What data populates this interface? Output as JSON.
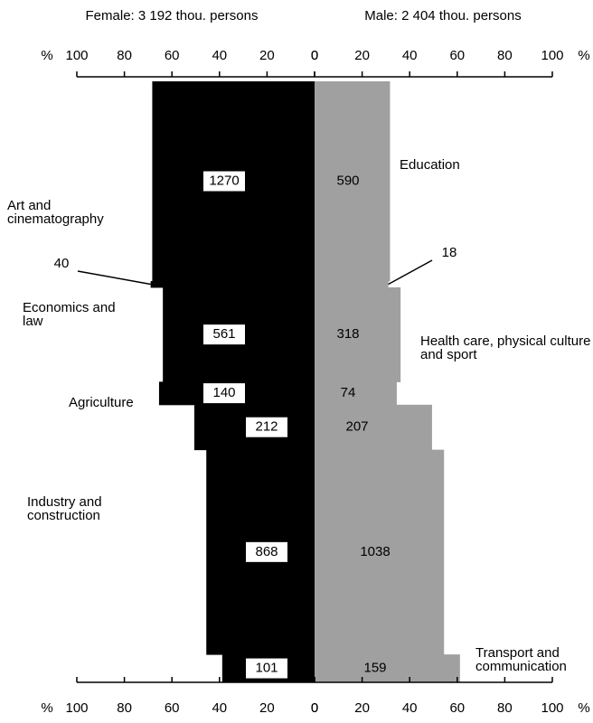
{
  "chart_data": {
    "type": "mirrored-mosaic",
    "categories": [
      "Education",
      "Art and cinematography",
      "Economics and law",
      "Health care, physical culture and sport",
      "Agriculture",
      "Industry and construction",
      "Transport and communication"
    ],
    "series": [
      {
        "name": "Female: 3 192 thou. persons",
        "color": "#000000",
        "values": [
          1270,
          40,
          561,
          140,
          212,
          868,
          101
        ]
      },
      {
        "name": "Male: 2 404 thou. persons",
        "color": "#a0a0a0",
        "values": [
          590,
          18,
          318,
          74,
          207,
          1038,
          159
        ]
      }
    ],
    "xlim": [
      0,
      100
    ],
    "xticks": [
      0,
      20,
      40,
      60,
      80,
      100
    ],
    "axis_unit": "%"
  }
}
